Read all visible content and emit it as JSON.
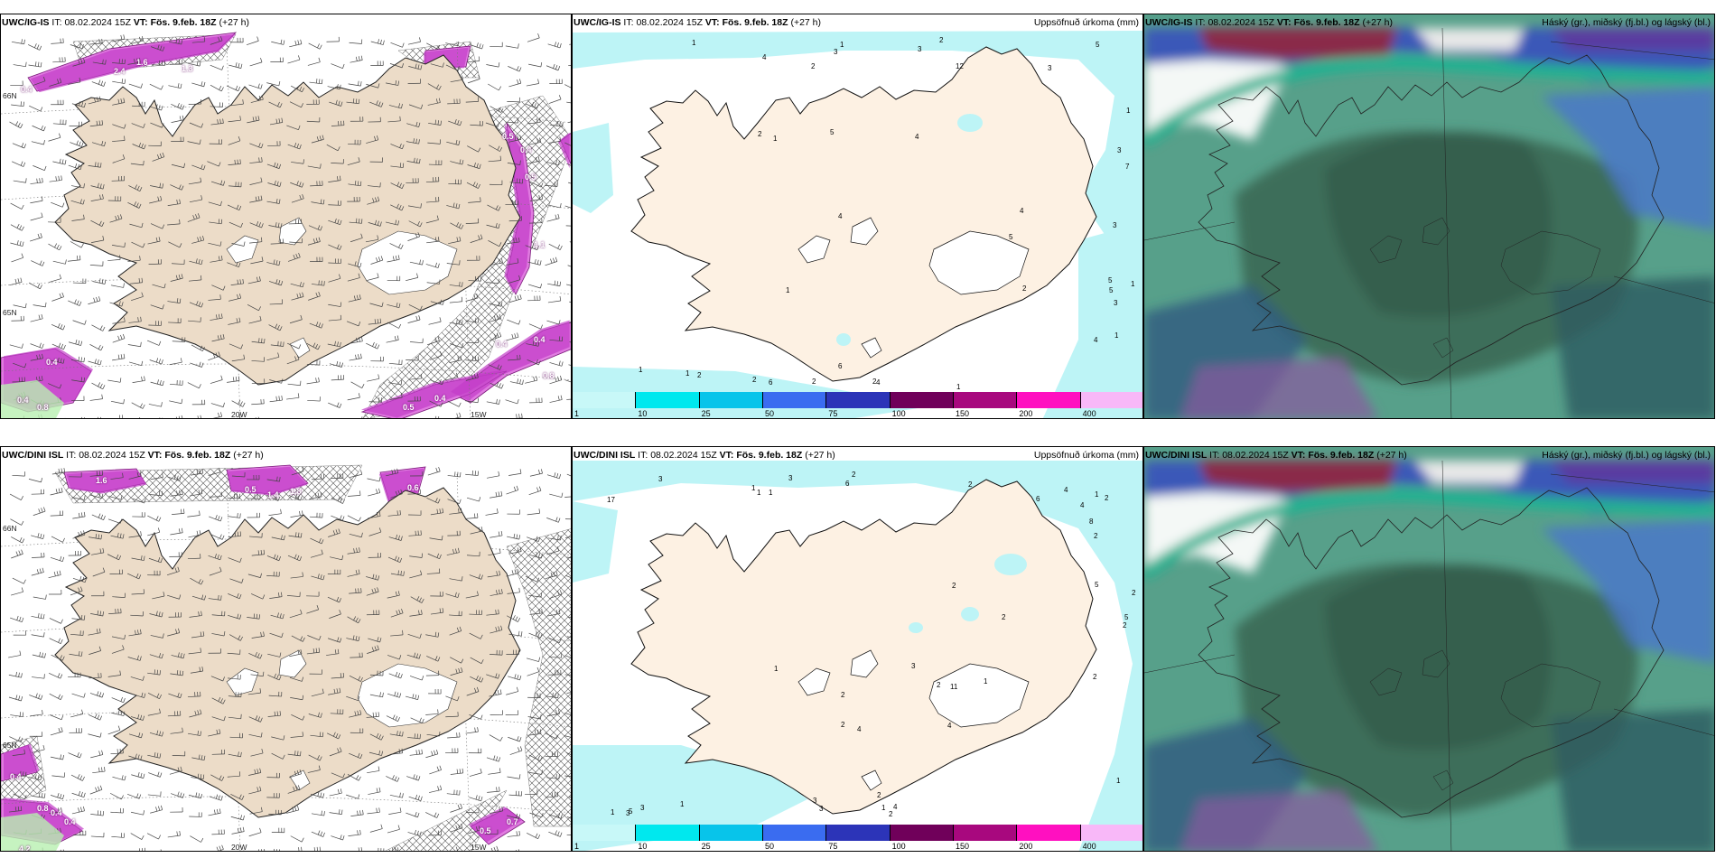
{
  "panels": [
    {
      "id": "wind-ig",
      "model": "UWC/IG-IS",
      "it_label": "IT:",
      "it_value": "08.02.2024 15Z",
      "vt_label": "VT:",
      "vt_value": "Fös. 9.feb. 18Z",
      "lead": "(+27 h)",
      "right_title": "",
      "lon_labels": [
        "20W",
        "15W"
      ],
      "lat_labels": [
        "66N",
        "65N"
      ],
      "value_labels": [
        "0.4",
        "1.6",
        "2.4",
        "1.3",
        "0.5",
        "0.4",
        "0.5",
        "1.1",
        "0.4",
        "0.4",
        "0.8",
        "0.5",
        "0.4",
        "0.4",
        "0.8",
        "0.4"
      ]
    },
    {
      "id": "precip-ig",
      "model": "UWC/IG-IS",
      "it_label": "IT:",
      "it_value": "08.02.2024 15Z",
      "vt_label": "VT:",
      "vt_value": "Fös. 9.feb. 18Z",
      "lead": "(+27 h)",
      "right_title": "Uppsöfnuð úrkoma (mm)",
      "precip_numbers": [
        "3",
        "1",
        "2",
        "4",
        "12",
        "3",
        "1",
        "2",
        "1",
        "3",
        "1",
        "4",
        "2",
        "5",
        "2",
        "1",
        "1",
        "1",
        "6",
        "5",
        "5",
        "1",
        "2",
        "1",
        "2",
        "7",
        "6",
        "5",
        "4",
        "5",
        "4",
        "4",
        "3",
        "3",
        "2",
        "2",
        "3",
        "4",
        "1"
      ]
    },
    {
      "id": "cloud-ig",
      "model": "UWC/IG-IS",
      "it_label": "IT:",
      "it_value": "08.02.2024 15Z",
      "vt_label": "VT:",
      "vt_value": "Fös. 9.feb. 18Z",
      "lead": "(+27 h)",
      "right_title": "Háský (gr.), miðský (fj.bl.) og lágský (bl.)"
    },
    {
      "id": "wind-dini",
      "model": "UWC/DINI ISL",
      "it_label": "IT:",
      "it_value": "08.02.2024 15Z",
      "vt_label": "VT:",
      "vt_value": "Fös. 9.feb. 18Z",
      "lead": "(+27 h)",
      "right_title": "",
      "lon_labels": [
        "20W",
        "15W"
      ],
      "lat_labels": [
        "66N",
        "65N"
      ],
      "value_labels": [
        "1.6",
        "0.5",
        "1.4",
        "1.8",
        "0.6",
        "0.4",
        "0.8",
        "0.4",
        "0.4",
        "0.5",
        "4.2",
        "0.7"
      ]
    },
    {
      "id": "precip-dini",
      "model": "UWC/DINI ISL",
      "it_label": "IT:",
      "it_value": "08.02.2024 15Z",
      "vt_label": "VT:",
      "vt_value": "Fös. 9.feb. 18Z",
      "lead": "(+27 h)",
      "right_title": "Uppsöfnuð úrkoma (mm)",
      "precip_numbers": [
        "1",
        "2",
        "2",
        "2",
        "6",
        "2",
        "3",
        "2",
        "3",
        "2",
        "3",
        "3",
        "1",
        "2",
        "3",
        "4",
        "2",
        "5",
        "2",
        "11",
        "6",
        "8",
        "4",
        "2",
        "4",
        "1",
        "1",
        "1",
        "1",
        "1",
        "1",
        "1",
        "3",
        "4",
        "1",
        "2",
        "2",
        "5",
        "5",
        "2",
        "17",
        "2",
        "3",
        "4"
      ]
    },
    {
      "id": "cloud-dini",
      "model": "UWC/DINI ISL",
      "it_label": "IT:",
      "it_value": "08.02.2024 15Z",
      "vt_label": "VT:",
      "vt_value": "Fös. 9.feb. 18Z",
      "lead": "(+27 h)",
      "right_title": "Háský (gr.), miðský (fj.bl.) og lágský (bl.)"
    }
  ],
  "colorbar": {
    "labels": [
      "1",
      "10",
      "25",
      "50",
      "75",
      "100",
      "150",
      "200",
      "400"
    ],
    "colors": [
      "#c8f8f8",
      "#00e8ee",
      "#08c4ea",
      "#3a6cf0",
      "#2c34b8",
      "#70005a",
      "#a8087e",
      "#ff10c0",
      "#f8b8f8"
    ]
  },
  "colors": {
    "land": "#ecdcc8",
    "land_precip": "#fdf1e3",
    "precip_light": "#bdf4f6",
    "cloud_dark": "#3d6e5a",
    "cloud_mid": "#4f9a86",
    "cloud_teal": "#1fb392",
    "cloud_blue": "#4a78c8",
    "cloud_maroon": "#8a2a4a",
    "wind_magenta": "#c020c0"
  }
}
